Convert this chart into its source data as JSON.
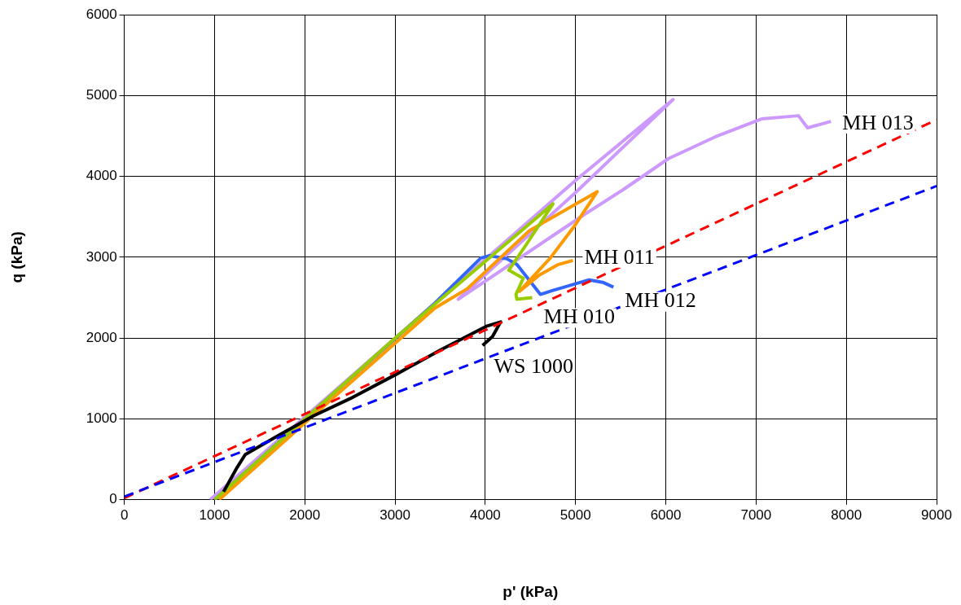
{
  "chart_data": {
    "type": "line",
    "xlabel": "p' (kPa)",
    "ylabel": "q (kPa)",
    "xlim": [
      0,
      9000
    ],
    "xticks": [
      0,
      1000,
      2000,
      3000,
      4000,
      5000,
      6000,
      7000,
      8000,
      9000
    ],
    "ylim": [
      0,
      6000
    ],
    "yticks": [
      0,
      1000,
      2000,
      3000,
      4000,
      5000,
      6000
    ],
    "grid": true,
    "legend": false,
    "marker": "none",
    "series": [
      {
        "name": "MH 013",
        "color": "#cc99ff",
        "x": [
          950,
          3000,
          5000,
          6080,
          5000,
          3700,
          5100,
          5520,
          6030,
          6550,
          7060,
          7470,
          7570,
          7830
        ],
        "values": [
          0,
          2000,
          3950,
          4950,
          3800,
          2480,
          3530,
          3830,
          4220,
          4490,
          4710,
          4750,
          4600,
          4680
        ]
      },
      {
        "name": "MH 012",
        "color": "#3366ff",
        "x": [
          1000,
          2000,
          3440,
          3950,
          4050,
          4240,
          4350,
          4610,
          4750,
          5150,
          5300,
          5420
        ],
        "values": [
          0,
          1000,
          2430,
          2990,
          3020,
          2980,
          2910,
          2540,
          2590,
          2720,
          2690,
          2630
        ]
      },
      {
        "name": "MH 011",
        "color": "#ff9900",
        "x": [
          1050,
          2000,
          3440,
          3800,
          4490,
          5240,
          4990,
          4720,
          4380,
          4600,
          4810,
          4970
        ],
        "values": [
          0,
          950,
          2370,
          2610,
          3330,
          3810,
          3390,
          2990,
          2580,
          2780,
          2910,
          2960
        ]
      },
      {
        "name": "MH 010",
        "color": "#99cc00",
        "x": [
          1000,
          3000,
          4750,
          4450,
          4260,
          4420,
          4340,
          4350,
          4520
        ],
        "values": [
          0,
          2000,
          3660,
          3150,
          2840,
          2740,
          2540,
          2480,
          2500
        ]
      },
      {
        "name": "WS 1000",
        "color": "#000000",
        "x": [
          1100,
          1250,
          1340,
          1700,
          2100,
          2500,
          3010,
          3500,
          4020,
          4170,
          4080,
          3970
        ],
        "values": [
          100,
          400,
          560,
          790,
          1040,
          1250,
          1550,
          1850,
          2150,
          2200,
          2020,
          1910
        ]
      },
      {
        "color": "#ff0000",
        "line_style": "dashed",
        "x": [
          0,
          9000
        ],
        "values": [
          20,
          4700
        ]
      },
      {
        "color": "#0000ff",
        "line_style": "dashed",
        "x": [
          0,
          9000
        ],
        "values": [
          40,
          3880
        ]
      }
    ]
  }
}
